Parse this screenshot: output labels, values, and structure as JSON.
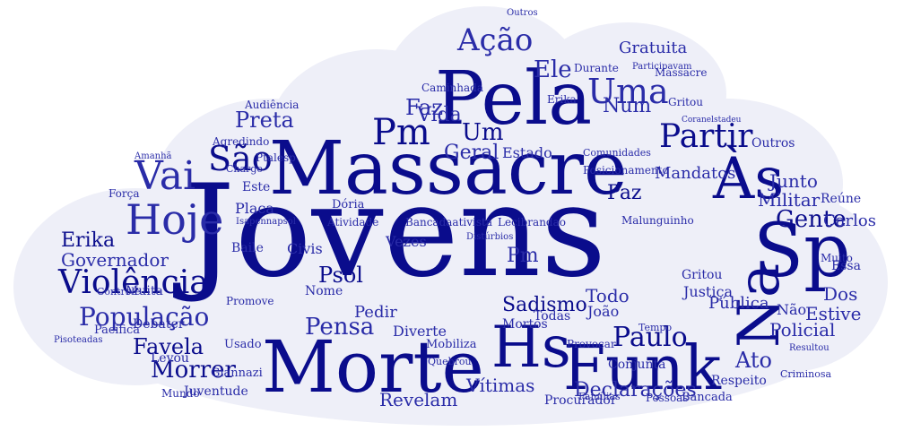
{
  "colors": {
    "cloud": "#eeeff8",
    "dark": "#0a0c8c",
    "mid": "#2a2ca8",
    "light": "#5a5ec8"
  },
  "words": {
    "w0": "Jovens",
    "w1": "Massacre",
    "w2": "Morte",
    "w3": "Pela",
    "w4": "Funk",
    "w5": "Sp",
    "w6": "Hs",
    "w7": "Na",
    "w8": "Às",
    "w9": "Hoje",
    "w10": "Vai",
    "w11": "Pm",
    "w12": "São",
    "w13": "Uma",
    "w14": "Ação",
    "w15": "Violência",
    "w16": "Partir",
    "w17": "Paulo",
    "w18": "População",
    "w19": "Pensa",
    "w20": "Morrer",
    "w21": "Favela",
    "w22": "Gente",
    "w23": "Ato",
    "w24": "Ele",
    "w25": "Psol",
    "w26": "Sadismo",
    "w27": "Revelam",
    "w28": "Declarações",
    "w29": "Erika",
    "w30": "Governador",
    "w31": "Preta",
    "w32": "Militar",
    "w33": "Paz",
    "w34": "Policial",
    "w35": "Estive",
    "w36": "Dos",
    "w37": "Carlos",
    "w38": "Pública",
    "w39": "Mandatos",
    "w40": "Junto",
    "w41": "Geral",
    "w42": "Todo",
    "w43": "Um",
    "w44": "Vida",
    "w45": "Faz",
    "w46": "Gratuita",
    "w47": "Vítimas",
    "w48": "Num",
    "w49": "Estado",
    "w50": "Comunidades",
    "w51": "Posicionamento",
    "w52": "Atividade",
    "w53": "Bancadaativista",
    "w54": "Lecibrandao",
    "w55": "Diverte",
    "w56": "Mobiliza",
    "w57": "Juventude",
    "w58": "Mundo",
    "w59": "Pedir",
    "w60": "Civis",
    "w61": "Baile",
    "w62": "Força",
    "w63": "Conjunta",
    "w64": "Respeito",
    "w65": "Procurador",
    "w66": "Não",
    "w67": "Outros",
    "w68": "Essa",
    "w69": "Nome",
    "w70": "Muita",
    "w71": "Levou",
    "w72": "Provocar",
    "w73": "Debater",
    "w74": "Pacífica",
    "w75": "Placa",
    "w76": "Este",
    "w77": "Agredindo",
    "w78": "Audiência",
    "w79": "Ptalesp",
    "w80": "Amanhã",
    "w81": "Promove",
    "w82": "Reúne",
    "w83": "Usado",
    "w84": "Gritou",
    "w85": "Giannazi",
    "w86": "Malunguinho",
    "w87": "Distúrbios",
    "w88": "Caminhada",
    "w89": "Durante",
    "w90": "Vezes",
    "w91": "Todas",
    "w92": "Dória",
    "w93": "Quebrou",
    "w94": "Charge",
    "w95": "Controle",
    "w96": "Criminosa",
    "w97": "Famílias",
    "w98": "Pessoas",
    "w99": "Isapennapsol",
    "w100": "Tempo",
    "w101": "Resultou",
    "w102": "Bancada",
    "w103": "Participavam",
    "w104": "Pisoteadas",
    "w105": "João",
    "w106": "Muito",
    "w107": "Mortos",
    "w108": "Coranelstadeu",
    "w109": "Massacre",
    "w110": "Gritou",
    "w111": "Erika",
    "w112": "Justiça",
    "w113": "Outros"
  }
}
